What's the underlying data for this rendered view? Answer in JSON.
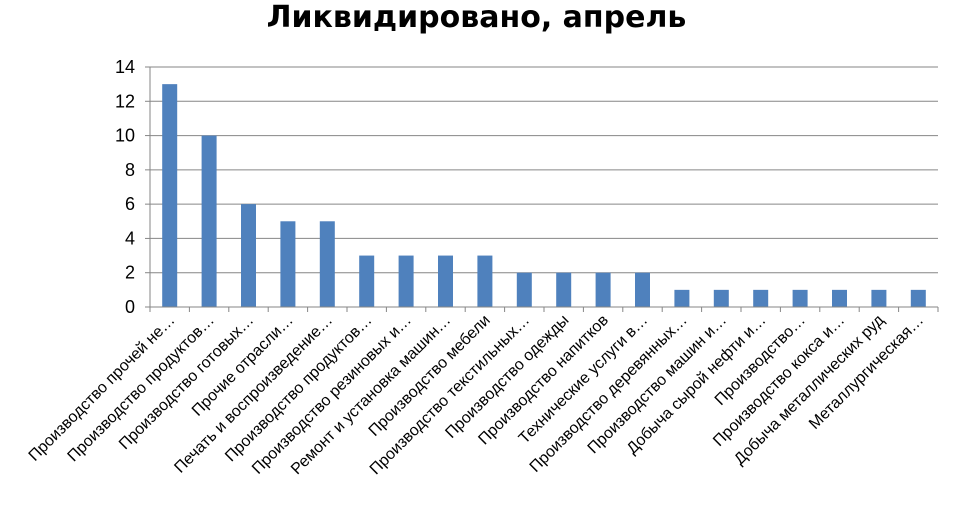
{
  "chart_data": {
    "type": "bar",
    "title": "Ликвидировано, апрель",
    "categories": [
      "Производство прочей не…",
      "Производство продуктов…",
      "Производство готовых…",
      "Прочие отрасли…",
      "Печать и воспроизведение…",
      "Производство продуктов…",
      "Производство резиновых и…",
      "Ремонт и установка машин…",
      "Производство мебели",
      "Производство текстильных…",
      "Производство одежды",
      "Производство напитков",
      "Технические услуги в…",
      "Производство деревянных…",
      "Производство машин и…",
      "Добыча сырой нефти и…",
      "Производство…",
      "Производство кокса и…",
      "Добыча металлических руд",
      "Металлургическая…"
    ],
    "values": [
      13,
      10,
      6,
      5,
      5,
      3,
      3,
      3,
      3,
      2,
      2,
      2,
      2,
      1,
      1,
      1,
      1,
      1,
      1,
      1
    ],
    "ylim": [
      0,
      14
    ],
    "yticks": [
      "0",
      "2",
      "4",
      "6",
      "8",
      "10",
      "12",
      "14"
    ],
    "grid": true,
    "legend": "none",
    "bar_color": "#4F81BD",
    "grid_color": "#868686"
  }
}
